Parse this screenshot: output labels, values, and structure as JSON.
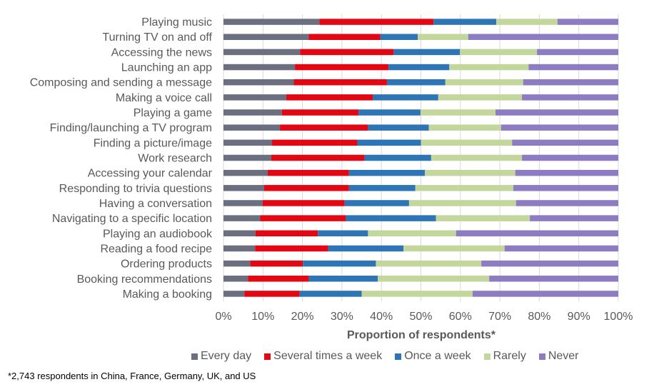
{
  "chart_data": {
    "type": "bar",
    "orientation": "horizontal",
    "stacked": true,
    "title": "",
    "xlabel": "Proportion of respondents*",
    "ylabel": "",
    "xlim": [
      0,
      100
    ],
    "x_ticks": [
      "0%",
      "10%",
      "20%",
      "30%",
      "40%",
      "50%",
      "60%",
      "70%",
      "80%",
      "90%",
      "100%"
    ],
    "grid": true,
    "legend_position": "bottom",
    "categories": [
      "Playing music",
      "Turning TV on and off",
      "Accessing the news",
      "Launching an app",
      "Composing and sending a message",
      "Making a voice call",
      "Playing a game",
      "Finding/launching a TV program",
      "Finding a picture/image",
      "Work research",
      "Accessing your calendar",
      "Responding to trivia questions",
      "Having a conversation",
      "Navigating to a specific location",
      "Playing an audiobook",
      "Reading a food recipe",
      "Ordering products",
      "Booking recommendations",
      "Making a booking"
    ],
    "series": [
      {
        "name": "Every day",
        "color": "#6b6f80",
        "values": [
          24.3,
          21.6,
          19.4,
          18.1,
          17.8,
          15.9,
          14.8,
          14.3,
          12.3,
          12.1,
          11.2,
          10.3,
          9.9,
          9.3,
          8.1,
          8.0,
          6.8,
          6.2,
          5.3
        ]
      },
      {
        "name": "Several times a week",
        "color": "#e30613",
        "values": [
          28.9,
          18.1,
          23.7,
          23.7,
          23.6,
          21.9,
          19.4,
          22.3,
          21.6,
          23.6,
          20.6,
          21.5,
          20.8,
          21.7,
          15.8,
          18.5,
          13.3,
          15.4,
          14.0
        ]
      },
      {
        "name": "Once a week",
        "color": "#2e75b6",
        "values": [
          15.9,
          9.5,
          16.8,
          15.4,
          14.8,
          16.6,
          15.7,
          15.4,
          16.1,
          16.9,
          19.2,
          16.8,
          16.3,
          22.8,
          12.7,
          19.1,
          18.5,
          17.5,
          15.7
        ]
      },
      {
        "name": "Rarely",
        "color": "#c3d69b",
        "values": [
          15.5,
          12.8,
          19.5,
          20.1,
          19.7,
          21.2,
          19.0,
          18.3,
          23.1,
          23.0,
          22.9,
          24.8,
          27.1,
          23.8,
          22.3,
          25.6,
          26.7,
          28.2,
          28.1
        ]
      },
      {
        "name": "Never",
        "color": "#8e7cc3",
        "values": [
          15.4,
          38.0,
          20.6,
          22.7,
          24.1,
          24.4,
          31.1,
          29.7,
          26.9,
          24.4,
          26.1,
          26.6,
          25.9,
          22.4,
          41.1,
          28.8,
          34.7,
          32.7,
          36.9
        ]
      }
    ],
    "footnote": "*2,743 respondents in China, France, Germany, UK, and US"
  }
}
